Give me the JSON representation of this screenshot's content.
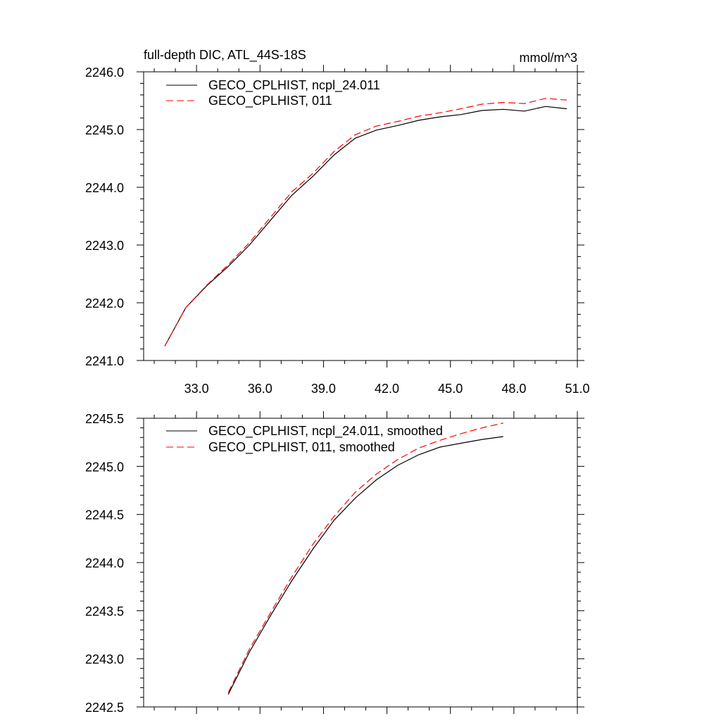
{
  "chart_data": [
    {
      "type": "line",
      "title_left": "full-depth DIC, ATL_44S-18S",
      "title_right": "mmol/m^3",
      "xlim": [
        30.5,
        51.0
      ],
      "ylim": [
        2241.0,
        2246.0
      ],
      "x_ticks": [
        33.0,
        36.0,
        39.0,
        42.0,
        45.0,
        48.0,
        51.0
      ],
      "x_tick_labels": [
        "33.0",
        "36.0",
        "39.0",
        "42.0",
        "45.0",
        "48.0",
        "51.0"
      ],
      "y_ticks": [
        2241.0,
        2242.0,
        2243.0,
        2244.0,
        2245.0,
        2246.0
      ],
      "y_tick_labels": [
        "2241.0",
        "2242.0",
        "2243.0",
        "2244.0",
        "2245.0",
        "2246.0"
      ],
      "legend_position": "top-left",
      "x": [
        31.5,
        32.5,
        33.5,
        34.5,
        35.5,
        36.5,
        37.5,
        38.5,
        39.5,
        40.5,
        41.5,
        42.5,
        43.5,
        44.5,
        45.5,
        46.5,
        47.5,
        48.5,
        49.5,
        50.5
      ],
      "series": [
        {
          "name": "GECO_CPLHIST, ncpl_24.011",
          "color": "#000000",
          "dash": "solid",
          "values": [
            2241.25,
            2241.92,
            2242.3,
            2242.63,
            2243.0,
            2243.43,
            2243.86,
            2244.19,
            2244.56,
            2244.85,
            2244.99,
            2245.07,
            2245.16,
            2245.22,
            2245.26,
            2245.33,
            2245.35,
            2245.32,
            2245.4,
            2245.36
          ]
        },
        {
          "name": "GECO_CPLHIST, 011",
          "color": "#ff0000",
          "dash": "dashed",
          "values": [
            2241.25,
            2241.92,
            2242.31,
            2242.66,
            2243.04,
            2243.48,
            2243.92,
            2244.24,
            2244.62,
            2244.91,
            2245.06,
            2245.14,
            2245.23,
            2245.29,
            2245.36,
            2245.44,
            2245.47,
            2245.45,
            2245.54,
            2245.51
          ]
        }
      ]
    },
    {
      "type": "line",
      "xlim": [
        30.5,
        51.0
      ],
      "ylim": [
        2242.5,
        2245.5
      ],
      "x_ticks": [
        33.0,
        36.0,
        39.0,
        42.0,
        45.0,
        48.0,
        51.0
      ],
      "y_ticks": [
        2242.5,
        2243.0,
        2243.5,
        2244.0,
        2244.5,
        2245.0,
        2245.5
      ],
      "y_tick_labels": [
        "2242.5",
        "2243.0",
        "2243.5",
        "2244.0",
        "2244.5",
        "2245.0",
        "2245.5"
      ],
      "legend_position": "top-left",
      "x": [
        34.5,
        35.5,
        36.5,
        37.5,
        38.5,
        39.5,
        40.5,
        41.5,
        42.5,
        43.5,
        44.5,
        45.5,
        46.5,
        47.5
      ],
      "series": [
        {
          "name": "GECO_CPLHIST, ncpl_24.011, smoothed",
          "color": "#000000",
          "dash": "solid",
          "values": [
            2242.63,
            2243.07,
            2243.45,
            2243.81,
            2244.14,
            2244.44,
            2244.67,
            2244.86,
            2245.01,
            2245.12,
            2245.2,
            2245.24,
            2245.28,
            2245.31
          ]
        },
        {
          "name": "GECO_CPLHIST, 011, smoothed",
          "color": "#ff0000",
          "dash": "dashed",
          "values": [
            2242.65,
            2243.1,
            2243.48,
            2243.85,
            2244.19,
            2244.48,
            2244.73,
            2244.92,
            2245.07,
            2245.19,
            2245.27,
            2245.34,
            2245.4,
            2245.45
          ]
        }
      ]
    }
  ]
}
